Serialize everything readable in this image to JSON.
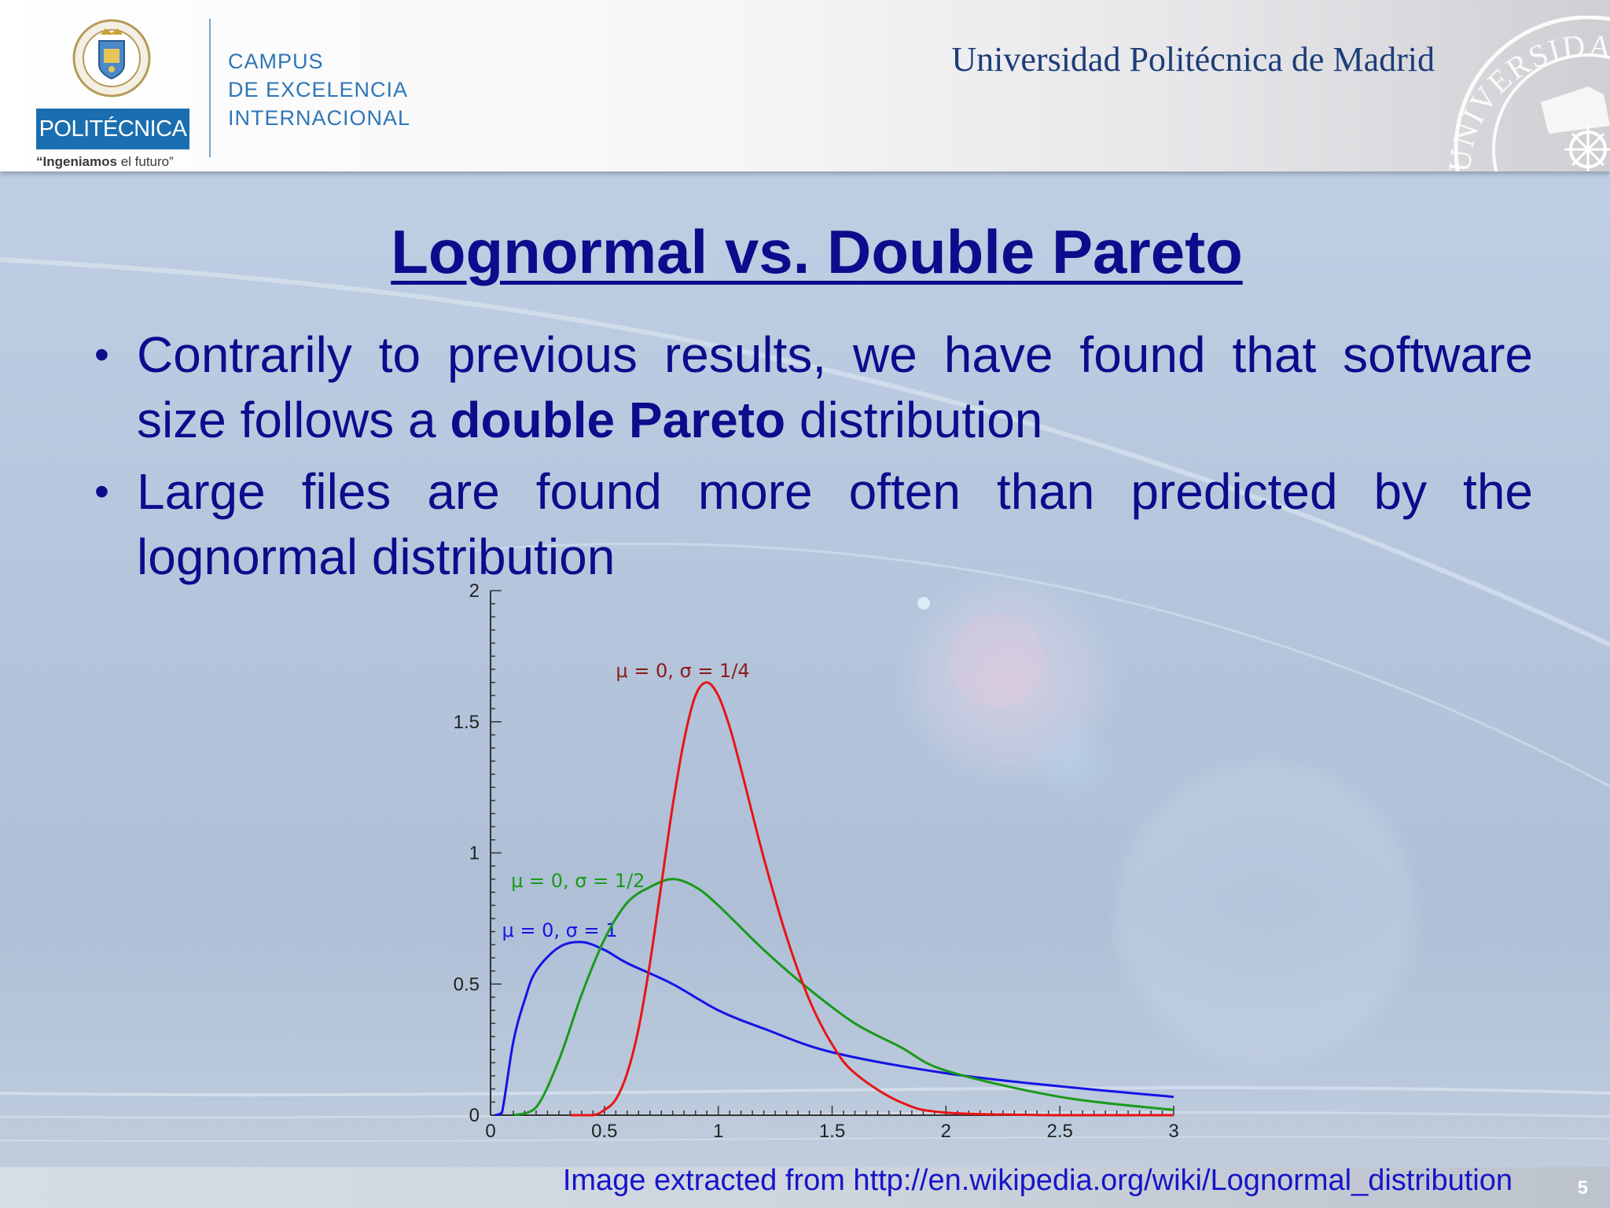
{
  "header": {
    "brand": "POLITÉCNICA",
    "tagline_bold": "“Ingeniamos",
    "tagline_rest": " el futuro”",
    "campus_lines": [
      "CAMPUS",
      "DE EXCELENCIA",
      "INTERNACIONAL"
    ],
    "university": "Universidad Politécnica de Madrid",
    "crest_text": "UNIVERSIDAD POLITÉCNICA DE MADRID",
    "seal_text": "UNIVERSIDAD"
  },
  "slide": {
    "title": "Lognormal vs. Double Pareto",
    "bullets": [
      {
        "marker": "•",
        "before": "Contrarily to previous results, we have found that software size follows a ",
        "bold": "double Pareto",
        "after": " distribution"
      },
      {
        "marker": "•",
        "text": "Large files are found more often than predicted by the lognormal distribution"
      }
    ],
    "source_note": "Image extracted from http://en.wikipedia.org/wiki/Lognormal_distribution",
    "page_number": "5"
  },
  "chart_data": {
    "type": "line",
    "title": "",
    "xlabel": "",
    "ylabel": "",
    "xlim": [
      0,
      3
    ],
    "ylim": [
      0,
      2
    ],
    "x_ticks": [
      "0",
      "0.5",
      "1",
      "1.5",
      "2",
      "2.5",
      "3"
    ],
    "y_ticks": [
      "0",
      "0.5",
      "1",
      "1.5",
      "2"
    ],
    "grid": false,
    "legend": "none",
    "series": [
      {
        "name": "μ = 0, σ = 1",
        "color": "#1414e6",
        "x": [
          0.02,
          0.05,
          0.1,
          0.15,
          0.2,
          0.3,
          0.4,
          0.5,
          0.6,
          0.8,
          1.0,
          1.2,
          1.5,
          2.0,
          2.5,
          3.0
        ],
        "values": [
          0.0,
          0.01,
          0.28,
          0.44,
          0.55,
          0.64,
          0.66,
          0.63,
          0.58,
          0.5,
          0.4,
          0.33,
          0.24,
          0.16,
          0.11,
          0.07
        ]
      },
      {
        "name": "μ = 0, σ = 1/2",
        "color": "#1a9a1a",
        "x": [
          0.1,
          0.2,
          0.3,
          0.4,
          0.5,
          0.6,
          0.7,
          0.8,
          0.9,
          1.0,
          1.2,
          1.4,
          1.6,
          1.8,
          2.0,
          2.5,
          3.0
        ],
        "values": [
          0.0,
          0.03,
          0.21,
          0.46,
          0.67,
          0.81,
          0.87,
          0.9,
          0.87,
          0.8,
          0.63,
          0.48,
          0.35,
          0.26,
          0.17,
          0.07,
          0.02
        ]
      },
      {
        "name": "μ = 0, σ = 1/4",
        "color": "#e81414",
        "x": [
          0.35,
          0.45,
          0.5,
          0.55,
          0.6,
          0.65,
          0.7,
          0.75,
          0.8,
          0.85,
          0.9,
          0.95,
          1.0,
          1.05,
          1.1,
          1.2,
          1.3,
          1.4,
          1.5,
          1.6,
          1.8,
          2.0,
          2.5,
          3.0
        ],
        "values": [
          0.0,
          0.0,
          0.02,
          0.06,
          0.16,
          0.33,
          0.58,
          0.88,
          1.18,
          1.43,
          1.6,
          1.65,
          1.6,
          1.48,
          1.32,
          0.98,
          0.68,
          0.44,
          0.27,
          0.16,
          0.05,
          0.01,
          0.0,
          0.0
        ]
      }
    ]
  }
}
